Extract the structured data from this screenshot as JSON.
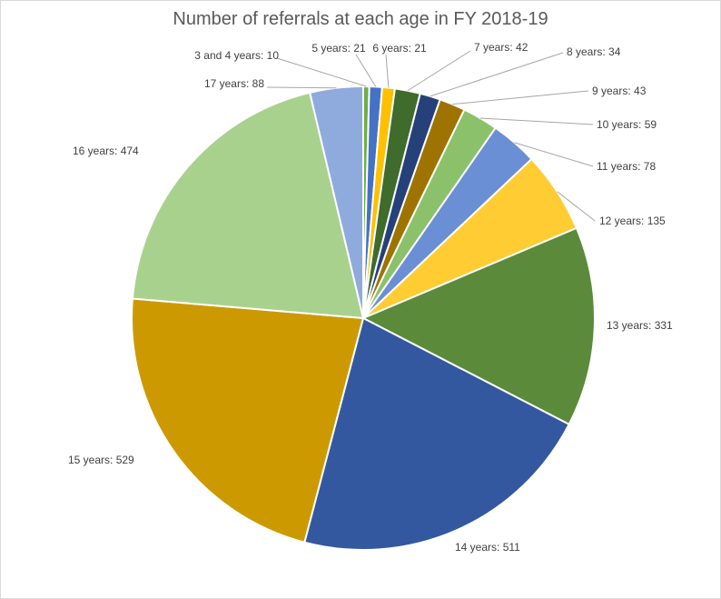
{
  "chart_data": {
    "type": "pie",
    "title": "Number of referrals at each age in FY 2018-19",
    "start_angle_deg": 0,
    "direction": "clockwise",
    "slices": [
      {
        "label": "3 and 4 years: 10",
        "category": "3 and 4 years",
        "value": 10,
        "color": "#70ad47"
      },
      {
        "label": "5 years: 21",
        "category": "5 years",
        "value": 21,
        "color": "#4472c4"
      },
      {
        "label": "6 years: 21",
        "category": "6 years",
        "value": 21,
        "color": "#ffc000"
      },
      {
        "label": "7 years: 42",
        "category": "7 years",
        "value": 42,
        "color": "#3f6b2d"
      },
      {
        "label": "8 years: 34",
        "category": "8 years",
        "value": 34,
        "color": "#26417a"
      },
      {
        "label": "9 years: 43",
        "category": "9 years",
        "value": 43,
        "color": "#9e7300"
      },
      {
        "label": "10 years: 59",
        "category": "10 years",
        "value": 59,
        "color": "#8bc16a"
      },
      {
        "label": "11 years: 78",
        "category": "11 years",
        "value": 78,
        "color": "#6b8fd4"
      },
      {
        "label": "12 years: 135",
        "category": "12 years",
        "value": 135,
        "color": "#ffcd33"
      },
      {
        "label": "13 years: 331",
        "category": "13 years",
        "value": 331,
        "color": "#5b8a3a"
      },
      {
        "label": "14 years: 511",
        "category": "14 years",
        "value": 511,
        "color": "#3358a0"
      },
      {
        "label": "15 years: 529",
        "category": "15 years",
        "value": 529,
        "color": "#cc9a00"
      },
      {
        "label": "16 years: 474",
        "category": "16 years",
        "value": 474,
        "color": "#a9d18e"
      },
      {
        "label": "17 years: 88",
        "category": "17 years",
        "value": 88,
        "color": "#8faadc"
      }
    ]
  }
}
